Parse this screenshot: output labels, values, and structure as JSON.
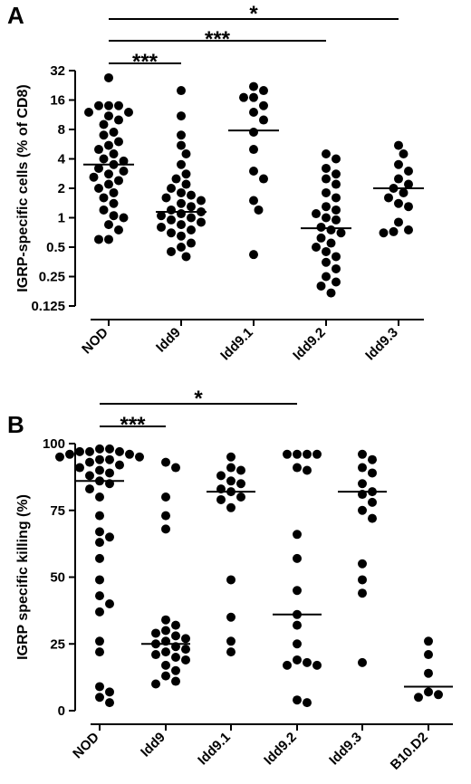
{
  "chart_data": [
    {
      "type": "scatter",
      "panel": "A",
      "ylabel": "IGRP-specific cells (% of CD8)",
      "y_scale": "log2",
      "ylim": [
        0.125,
        32
      ],
      "yticks": [
        0.125,
        0.25,
        0.5,
        1,
        2,
        4,
        8,
        16,
        32
      ],
      "ytick_labels": [
        "0.125",
        "0.25",
        "0.5",
        "1",
        "2",
        "4",
        "8",
        "16",
        "32"
      ],
      "categories": [
        "NOD",
        "Idd9",
        "Idd9.1",
        "Idd9.2",
        "Idd9.3"
      ],
      "medians": [
        3.5,
        1.15,
        7.8,
        0.78,
        2.0
      ],
      "points": [
        [
          27,
          14,
          14,
          14,
          12,
          12,
          11,
          10,
          9,
          7.5,
          7,
          6,
          5.5,
          5,
          4.5,
          4,
          3.8,
          3.5,
          3.2,
          3,
          2.8,
          2.6,
          2.4,
          2.2,
          2,
          1.8,
          1.6,
          1.4,
          1.2,
          1.05,
          1,
          0.85,
          0.75,
          0.6,
          0.6
        ],
        [
          20,
          11,
          7,
          5.5,
          4.5,
          3.5,
          2.8,
          2.5,
          2.2,
          2,
          1.8,
          1.7,
          1.6,
          1.5,
          1.4,
          1.3,
          1.2,
          1.15,
          1.1,
          1.05,
          1,
          0.95,
          0.9,
          0.85,
          0.8,
          0.75,
          0.7,
          0.65,
          0.55,
          0.5,
          0.45,
          0.4
        ],
        [
          22,
          20,
          17,
          17,
          14,
          12,
          10,
          7.5,
          5,
          3,
          2.5,
          1.5,
          1.2,
          0.42
        ],
        [
          4.5,
          4,
          3.2,
          2.8,
          2.5,
          2.2,
          1.8,
          1.6,
          1.3,
          1.2,
          1.1,
          1,
          0.95,
          0.8,
          0.75,
          0.7,
          0.62,
          0.55,
          0.5,
          0.45,
          0.4,
          0.35,
          0.3,
          0.25,
          0.22,
          0.2,
          0.17
        ],
        [
          5.5,
          4.5,
          3.5,
          3,
          2.5,
          2.2,
          2,
          1.8,
          1.6,
          1.4,
          1.3,
          0.9,
          0.75,
          0.72,
          0.7
        ]
      ],
      "significance": [
        {
          "from": 0,
          "to": 1,
          "label": "***"
        },
        {
          "from": 0,
          "to": 3,
          "label": "***"
        },
        {
          "from": 0,
          "to": 4,
          "label": "*"
        }
      ]
    },
    {
      "type": "scatter",
      "panel": "B",
      "ylabel": "IGRP specific killing (%)",
      "y_scale": "linear",
      "ylim": [
        0,
        100
      ],
      "yticks": [
        0,
        25,
        50,
        75,
        100
      ],
      "ytick_labels": [
        "0",
        "25",
        "50",
        "75",
        "100"
      ],
      "categories": [
        "NOD",
        "Idd9",
        "Idd9.1",
        "Idd9.2",
        "Idd9.3",
        "B10.D2"
      ],
      "medians": [
        86,
        25,
        82,
        36,
        82,
        9
      ],
      "points": [
        [
          98,
          98,
          97,
          97,
          97,
          96,
          96,
          95,
          95,
          94,
          94,
          93,
          92,
          91,
          90,
          89,
          88,
          86,
          85,
          83,
          80,
          73,
          67,
          65,
          63,
          57,
          49,
          43,
          40,
          37,
          26,
          22,
          9,
          7,
          5,
          3
        ],
        [
          93,
          91,
          80,
          73,
          68,
          34,
          32,
          30,
          29,
          28,
          27,
          26,
          25,
          24,
          23,
          22,
          21,
          20,
          19,
          17,
          15,
          13,
          11,
          10
        ],
        [
          95,
          91,
          90,
          88,
          86,
          85,
          83,
          82,
          80,
          79,
          76,
          49,
          35,
          26,
          22
        ],
        [
          96,
          96,
          96,
          96,
          91,
          90,
          66,
          57,
          45,
          36,
          32,
          25,
          19,
          18,
          17,
          17,
          4,
          3
        ],
        [
          96,
          94,
          91,
          89,
          85,
          82,
          81,
          78,
          75,
          72,
          55,
          49,
          44,
          18
        ],
        [
          26,
          21,
          14,
          7,
          6,
          5
        ]
      ],
      "significance": [
        {
          "from": 0,
          "to": 1,
          "label": "***"
        },
        {
          "from": 0,
          "to": 3,
          "label": "*"
        }
      ]
    }
  ]
}
